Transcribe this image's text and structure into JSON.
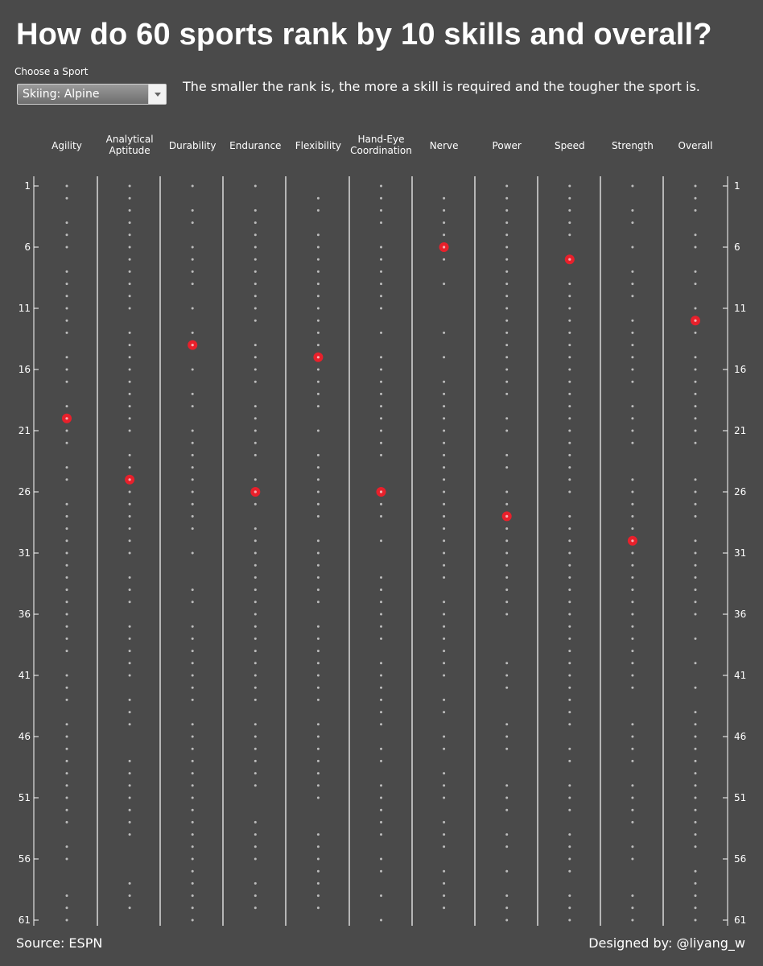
{
  "title": "How do 60 sports rank by 10 skills and overall?",
  "selector": {
    "label": "Choose a Sport",
    "selected": "Skiing: Alpine"
  },
  "subtitle": "The smaller the rank is, the more a skill is required and the tougher the sport is.",
  "footer": {
    "source": "Source: ESPN",
    "credit": "Designed by: @liyang_w"
  },
  "colors": {
    "background": "#4a4a4a",
    "highlight": "#e8202b",
    "dots": "#bdbdbd",
    "dividers": "#ffffff"
  },
  "chart_data": {
    "type": "scatter",
    "title": "",
    "y_axis": {
      "ticks": [
        1,
        6,
        11,
        16,
        21,
        26,
        31,
        36,
        41,
        46,
        51,
        56,
        61
      ],
      "range": [
        1,
        61
      ],
      "reversed": true
    },
    "categories": [
      {
        "label": [
          "Agility"
        ],
        "highlight_rank": 20
      },
      {
        "label": [
          "Analytical",
          "Aptitude"
        ],
        "highlight_rank": 25
      },
      {
        "label": [
          "Durability"
        ],
        "highlight_rank": 14
      },
      {
        "label": [
          "Endurance"
        ],
        "highlight_rank": 26
      },
      {
        "label": [
          "Flexibility"
        ],
        "highlight_rank": 15
      },
      {
        "label": [
          "Hand-Eye",
          "Coordination"
        ],
        "highlight_rank": 26
      },
      {
        "label": [
          "Nerve"
        ],
        "highlight_rank": 6
      },
      {
        "label": [
          "Power"
        ],
        "highlight_rank": 28
      },
      {
        "label": [
          "Speed"
        ],
        "highlight_rank": 7
      },
      {
        "label": [
          "Strength"
        ],
        "highlight_rank": 30
      },
      {
        "label": [
          "Overall"
        ],
        "highlight_rank": 12
      }
    ],
    "highlight_series": "Skiing: Alpine"
  }
}
